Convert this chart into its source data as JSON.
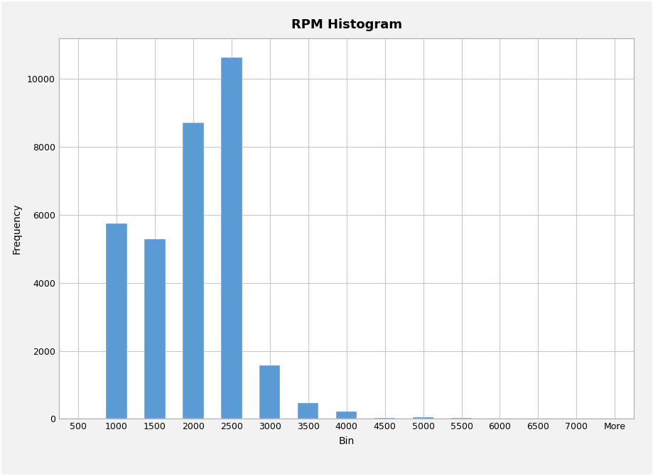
{
  "title": "RPM Histogram",
  "xlabel": "Bin",
  "ylabel": "Frequency",
  "categories": [
    "500",
    "1000",
    "1500",
    "2000",
    "2500",
    "3000",
    "3500",
    "4000",
    "4500",
    "5000",
    "5500",
    "6000",
    "6500",
    "7000",
    "More"
  ],
  "values": [
    0,
    5750,
    5280,
    8720,
    10620,
    1580,
    460,
    220,
    30,
    50,
    40,
    0,
    0,
    0,
    0
  ],
  "bar_color": "#5B9BD5",
  "ylim": [
    0,
    11200
  ],
  "yticks": [
    0,
    2000,
    4000,
    6000,
    8000,
    10000
  ],
  "background_color": "#FFFFFF",
  "plot_background_color": "#FFFFFF",
  "title_fontsize": 13,
  "axis_label_fontsize": 10,
  "tick_fontsize": 9,
  "grid_color": "#C8C8C8",
  "border_color": "#AAAAAA",
  "outer_background": "#F2F2F2"
}
